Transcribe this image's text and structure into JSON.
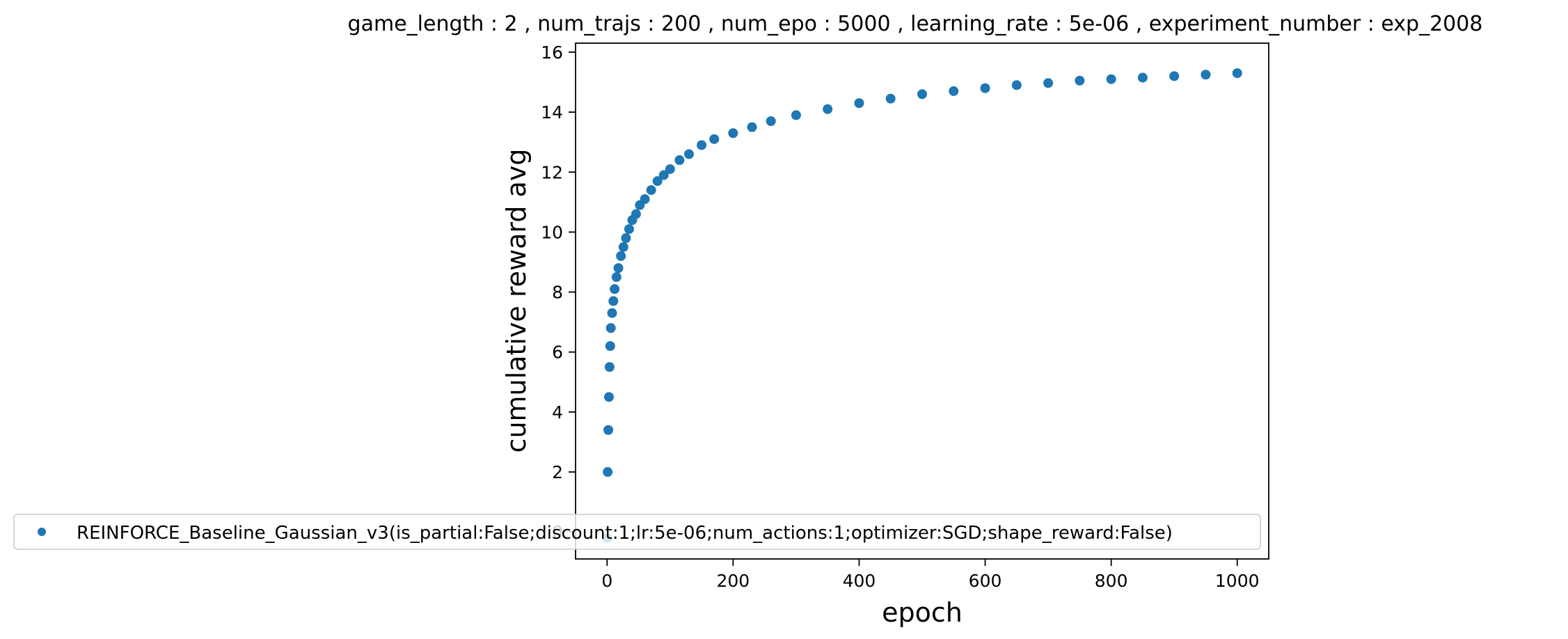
{
  "chart_data": {
    "type": "scatter",
    "title": "game_length : 2 , num_trajs : 200 , num_epo : 5000 , learning_rate : 5e-06 , experiment_number : exp_2008",
    "xlabel": "epoch",
    "ylabel": "cumulative reward avg",
    "xlim": [
      -50,
      1050
    ],
    "ylim": [
      -0.9,
      16.3
    ],
    "x_ticks": [
      0,
      200,
      400,
      600,
      800,
      1000
    ],
    "y_ticks": [
      0,
      2,
      4,
      6,
      8,
      10,
      12,
      14,
      16
    ],
    "grid": false,
    "legend_position": "lower-left",
    "marker_color": "#1f77b4",
    "series": [
      {
        "name": "REINFORCE_Baseline_Gaussian_v3(is_partial:False;discount:1;lr:5e-06;num_actions:1;optimizer:SGD;shape_reward:False)",
        "x": [
          0,
          1,
          2,
          3,
          4,
          5,
          6,
          8,
          10,
          12,
          15,
          18,
          22,
          26,
          30,
          35,
          40,
          46,
          52,
          60,
          70,
          80,
          90,
          100,
          115,
          130,
          150,
          170,
          200,
          230,
          260,
          300,
          350,
          400,
          450,
          500,
          550,
          600,
          650,
          700,
          750,
          800,
          850,
          900,
          950,
          1000
        ],
        "y": [
          -0.2,
          2.0,
          3.4,
          4.5,
          5.5,
          6.2,
          6.8,
          7.3,
          7.7,
          8.1,
          8.5,
          8.8,
          9.2,
          9.5,
          9.8,
          10.1,
          10.4,
          10.6,
          10.9,
          11.1,
          11.4,
          11.7,
          11.9,
          12.1,
          12.4,
          12.6,
          12.9,
          13.1,
          13.3,
          13.5,
          13.7,
          13.9,
          14.1,
          14.3,
          14.45,
          14.6,
          14.7,
          14.8,
          14.9,
          14.97,
          15.05,
          15.1,
          15.15,
          15.2,
          15.25,
          15.3
        ]
      }
    ]
  }
}
